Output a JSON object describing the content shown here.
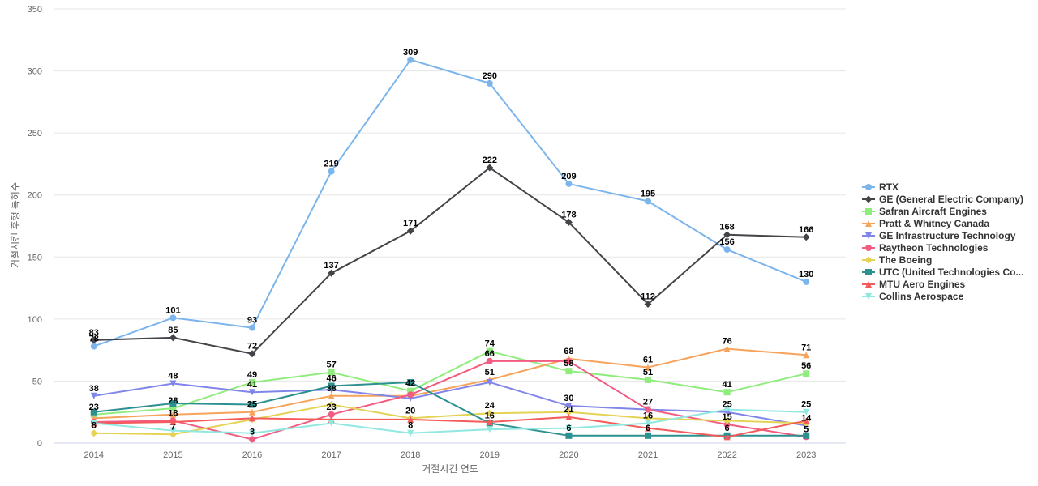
{
  "chart_data": {
    "type": "line",
    "x": [
      2014,
      2015,
      2016,
      2017,
      2018,
      2019,
      2020,
      2021,
      2022,
      2023
    ],
    "xlabel": "거절시킨 연도",
    "ylabel": "거절시킨 후행 특허수",
    "ylim": [
      0,
      350
    ],
    "yticks": [
      0,
      50,
      100,
      150,
      200,
      250,
      300,
      350
    ],
    "grid": true,
    "legend_position": "right",
    "series": [
      {
        "name": "RTX",
        "color": "#7cb5ec",
        "marker": "circle",
        "values": [
          78,
          101,
          93,
          219,
          309,
          290,
          209,
          195,
          156,
          130
        ]
      },
      {
        "name": "GE (General Electric Company)",
        "color": "#434348",
        "marker": "diamond",
        "values": [
          83,
          85,
          72,
          137,
          171,
          222,
          178,
          112,
          168,
          166
        ]
      },
      {
        "name": "Safran Aircraft Engines",
        "color": "#90ed7d",
        "marker": "square",
        "values": [
          23,
          28,
          49,
          57,
          42,
          74,
          58,
          51,
          41,
          56
        ]
      },
      {
        "name": "Pratt & Whitney Canada",
        "color": "#f7a35c",
        "marker": "triangle",
        "values": [
          20,
          23,
          25,
          38,
          38,
          51,
          68,
          61,
          76,
          71
        ]
      },
      {
        "name": "GE Infrastructure Technology",
        "color": "#8085e9",
        "marker": "triangle-down",
        "values": [
          38,
          48,
          41,
          43,
          36,
          49,
          30,
          27,
          25,
          14
        ]
      },
      {
        "name": "Raytheon Technologies",
        "color": "#f15c80",
        "marker": "circle",
        "values": [
          17,
          18,
          3,
          23,
          39,
          66,
          66,
          27,
          15,
          5
        ]
      },
      {
        "name": "The Boeing",
        "color": "#e4d354",
        "marker": "diamond",
        "values": [
          8,
          7,
          19,
          31,
          20,
          24,
          25,
          20,
          18,
          16
        ]
      },
      {
        "name": "UTC (United Technologies Co...",
        "color": "#2b908f",
        "marker": "square",
        "values": [
          25,
          32,
          31,
          46,
          49,
          16,
          6,
          6,
          6,
          6
        ]
      },
      {
        "name": "MTU Aero Engines",
        "color": "#f45b5b",
        "marker": "triangle",
        "values": [
          16,
          17,
          20,
          19,
          19,
          17,
          21,
          12,
          5,
          18
        ]
      },
      {
        "name": "Collins Aerospace",
        "color": "#91e8e1",
        "marker": "triangle-down",
        "values": [
          16,
          10,
          8,
          16,
          8,
          11,
          12,
          16,
          27,
          25
        ]
      }
    ],
    "data_labels": [
      {
        "x": 2014,
        "y": 78,
        "text": "78"
      },
      {
        "x": 2015,
        "y": 101,
        "text": "101"
      },
      {
        "x": 2016,
        "y": 93,
        "text": "93"
      },
      {
        "x": 2017,
        "y": 219,
        "text": "219"
      },
      {
        "x": 2018,
        "y": 309,
        "text": "309"
      },
      {
        "x": 2019,
        "y": 290,
        "text": "290"
      },
      {
        "x": 2020,
        "y": 209,
        "text": "209"
      },
      {
        "x": 2021,
        "y": 195,
        "text": "195"
      },
      {
        "x": 2022,
        "y": 156,
        "text": "156"
      },
      {
        "x": 2023,
        "y": 130,
        "text": "130"
      },
      {
        "x": 2014,
        "y": 83,
        "text": "83"
      },
      {
        "x": 2015,
        "y": 85,
        "text": "85"
      },
      {
        "x": 2016,
        "y": 72,
        "text": "72"
      },
      {
        "x": 2017,
        "y": 137,
        "text": "137"
      },
      {
        "x": 2018,
        "y": 171,
        "text": "171"
      },
      {
        "x": 2019,
        "y": 222,
        "text": "222"
      },
      {
        "x": 2020,
        "y": 178,
        "text": "178"
      },
      {
        "x": 2021,
        "y": 112,
        "text": "112"
      },
      {
        "x": 2022,
        "y": 168,
        "text": "168"
      },
      {
        "x": 2023,
        "y": 166,
        "text": "166"
      },
      {
        "x": 2014,
        "y": 38,
        "text": "38"
      },
      {
        "x": 2015,
        "y": 48,
        "text": "48"
      },
      {
        "x": 2016,
        "y": 49,
        "text": "49"
      },
      {
        "x": 2017,
        "y": 57,
        "text": "57"
      },
      {
        "x": 2019,
        "y": 74,
        "text": "74"
      },
      {
        "x": 2020,
        "y": 68,
        "text": "68"
      },
      {
        "x": 2021,
        "y": 61,
        "text": "61"
      },
      {
        "x": 2022,
        "y": 76,
        "text": "76"
      },
      {
        "x": 2023,
        "y": 71,
        "text": "71"
      },
      {
        "x": 2016,
        "y": 41,
        "text": "41"
      },
      {
        "x": 2017,
        "y": 46,
        "text": "46"
      },
      {
        "x": 2018,
        "y": 42,
        "text": "42"
      },
      {
        "x": 2019,
        "y": 66,
        "text": "66"
      },
      {
        "x": 2020,
        "y": 58,
        "text": "58"
      },
      {
        "x": 2021,
        "y": 51,
        "text": "51"
      },
      {
        "x": 2022,
        "y": 41,
        "text": "41"
      },
      {
        "x": 2023,
        "y": 56,
        "text": "56"
      },
      {
        "x": 2017,
        "y": 38,
        "text": "38"
      },
      {
        "x": 2019,
        "y": 51,
        "text": "51"
      },
      {
        "x": 2014,
        "y": 23,
        "text": "23"
      },
      {
        "x": 2015,
        "y": 28,
        "text": "28"
      },
      {
        "x": 2016,
        "y": 25,
        "text": "25"
      },
      {
        "x": 2017,
        "y": 23,
        "text": "23"
      },
      {
        "x": 2018,
        "y": 20,
        "text": "20"
      },
      {
        "x": 2019,
        "y": 24,
        "text": "24"
      },
      {
        "x": 2020,
        "y": 30,
        "text": "30"
      },
      {
        "x": 2021,
        "y": 27,
        "text": "27"
      },
      {
        "x": 2022,
        "y": 25,
        "text": "25"
      },
      {
        "x": 2023,
        "y": 25,
        "text": "25"
      },
      {
        "x": 2015,
        "y": 18,
        "text": "18"
      },
      {
        "x": 2019,
        "y": 16,
        "text": "16"
      },
      {
        "x": 2020,
        "y": 21,
        "text": "21"
      },
      {
        "x": 2021,
        "y": 16,
        "text": "16"
      },
      {
        "x": 2022,
        "y": 15,
        "text": "15"
      },
      {
        "x": 2023,
        "y": 14,
        "text": "14"
      },
      {
        "x": 2014,
        "y": 8,
        "text": "8"
      },
      {
        "x": 2015,
        "y": 7,
        "text": "7"
      },
      {
        "x": 2016,
        "y": 3,
        "text": "3"
      },
      {
        "x": 2018,
        "y": 8,
        "text": "8"
      },
      {
        "x": 2020,
        "y": 6,
        "text": "6"
      },
      {
        "x": 2021,
        "y": 6,
        "text": "6"
      },
      {
        "x": 2022,
        "y": 6,
        "text": "6"
      },
      {
        "x": 2023,
        "y": 5,
        "text": "5"
      }
    ]
  }
}
